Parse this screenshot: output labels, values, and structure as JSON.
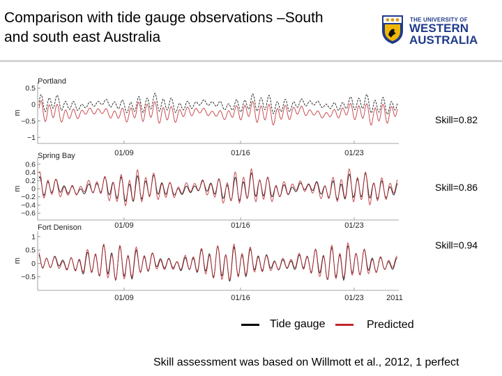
{
  "slide": {
    "title_line1": "Comparison with tide gauge observations –South",
    "title_line2": "and south east Australia",
    "logo": {
      "the": "THE UNIVERSITY OF",
      "word1": "WESTERN",
      "word2": "AUSTRALIA",
      "color": "#1e3a8a"
    },
    "footnote": "Skill assessment was based on Willmott et al., 2012, 1 perfect"
  },
  "chart_data": [
    {
      "type": "line",
      "title": "Portland",
      "ylabel": "m",
      "ylim": [
        -1.1,
        0.6
      ],
      "yticks": [
        "0.5",
        "0",
        "−0.5",
        "−1"
      ],
      "ytick_values": [
        0.5,
        0,
        -0.5,
        -1
      ],
      "xticks": [
        "01/09",
        "01/16",
        "01/23"
      ],
      "skill": "Skill=0.82",
      "series": [
        {
          "name": "Tide gauge",
          "color": "#000000",
          "mean": 0.0,
          "amp": 0.3
        },
        {
          "name": "Predicted",
          "color": "#c0262c",
          "mean": -0.25,
          "amp": 0.35
        }
      ]
    },
    {
      "type": "line",
      "title": "Spring Bay",
      "ylabel": "m",
      "ylim": [
        -0.7,
        0.7
      ],
      "yticks": [
        "0.6",
        "0.4",
        "0.2",
        "0",
        "−0.2",
        "−0.4",
        "−0.6"
      ],
      "ytick_values": [
        0.6,
        0.4,
        0.2,
        0,
        -0.2,
        -0.4,
        -0.6
      ],
      "xticks": [
        "01/09",
        "01/16",
        "01/23"
      ],
      "skill": "Skill=0.86",
      "series": [
        {
          "name": "Tide gauge",
          "color": "#000000",
          "mean": 0.0,
          "amp": 0.35
        },
        {
          "name": "Predicted",
          "color": "#c0262c",
          "mean": 0.0,
          "amp": 0.45
        }
      ]
    },
    {
      "type": "line",
      "title": "Fort Denison",
      "ylabel": "m",
      "ylim": [
        -0.9,
        1.1
      ],
      "yticks": [
        "1",
        "0.5",
        "0",
        "−0.5"
      ],
      "ytick_values": [
        1,
        0.5,
        0,
        -0.5
      ],
      "xticks": [
        "01/09",
        "01/16",
        "01/23"
      ],
      "extra_xlabel": "2011",
      "skill": "Skill=0.94",
      "series": [
        {
          "name": "Tide gauge",
          "color": "#000000",
          "mean": 0.0,
          "amp": 0.7
        },
        {
          "name": "Predicted",
          "color": "#c0262c",
          "mean": 0.0,
          "amp": 0.75
        }
      ]
    }
  ],
  "legend": [
    {
      "label": "Tide gauge",
      "color": "#000000"
    },
    {
      "label": "Predicted",
      "color": "#c0262c"
    }
  ]
}
